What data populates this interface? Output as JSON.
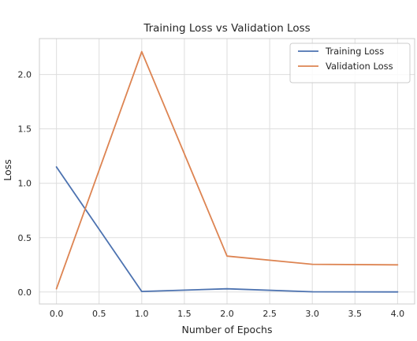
{
  "chart_data": {
    "type": "line",
    "title": "Training Loss vs Validation Loss",
    "xlabel": "Number of Epochs",
    "ylabel": "Loss",
    "xlim": [
      -0.2,
      4.2
    ],
    "ylim": [
      -0.11,
      2.33
    ],
    "xticks": [
      0.0,
      0.5,
      1.0,
      1.5,
      2.0,
      2.5,
      3.0,
      3.5,
      4.0
    ],
    "xtick_labels": [
      "0.0",
      "0.5",
      "1.0",
      "1.5",
      "2.0",
      "2.5",
      "3.0",
      "3.5",
      "4.0"
    ],
    "yticks": [
      0.0,
      0.5,
      1.0,
      1.5,
      2.0
    ],
    "ytick_labels": [
      "0.0",
      "0.5",
      "1.0",
      "1.5",
      "2.0"
    ],
    "grid": true,
    "legend_position": "top-right",
    "x": [
      0,
      1,
      2,
      3,
      4
    ],
    "series": [
      {
        "name": "Training Loss",
        "color": "#4c72b0",
        "values": [
          1.15,
          0.005,
          0.03,
          0.002,
          0.001
        ]
      },
      {
        "name": "Validation Loss",
        "color": "#dd8452",
        "values": [
          0.03,
          2.21,
          0.33,
          0.255,
          0.25
        ]
      }
    ]
  }
}
